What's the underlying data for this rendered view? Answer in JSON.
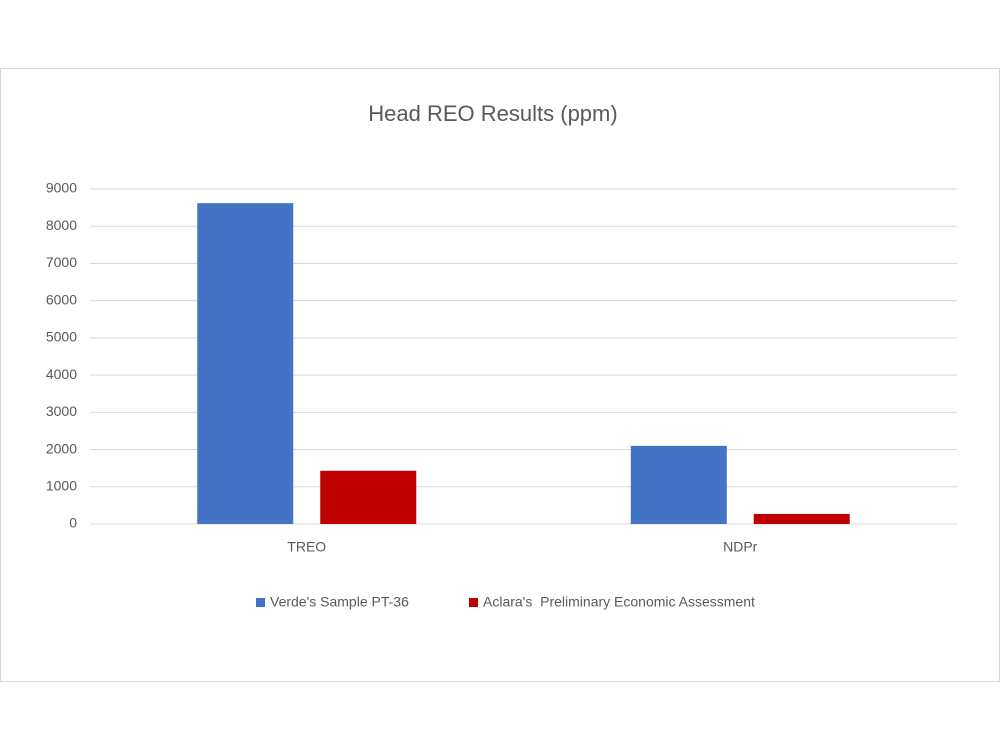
{
  "chart_data": {
    "type": "bar",
    "title": "Head REO Results (ppm)",
    "categories": [
      "TREO",
      "NDPr"
    ],
    "series": [
      {
        "name": "Verde's Sample PT-36",
        "color": "#4472c4",
        "values": [
          8620,
          2100
        ]
      },
      {
        "name": "Aclara's  Preliminary Economic Assessment",
        "color": "#c00000",
        "values": [
          1430,
          270
        ]
      }
    ],
    "ylim": [
      0,
      9000
    ],
    "yticks": [
      0,
      1000,
      2000,
      3000,
      4000,
      5000,
      6000,
      7000,
      8000,
      9000
    ],
    "grid": true,
    "legend": "bottom"
  }
}
